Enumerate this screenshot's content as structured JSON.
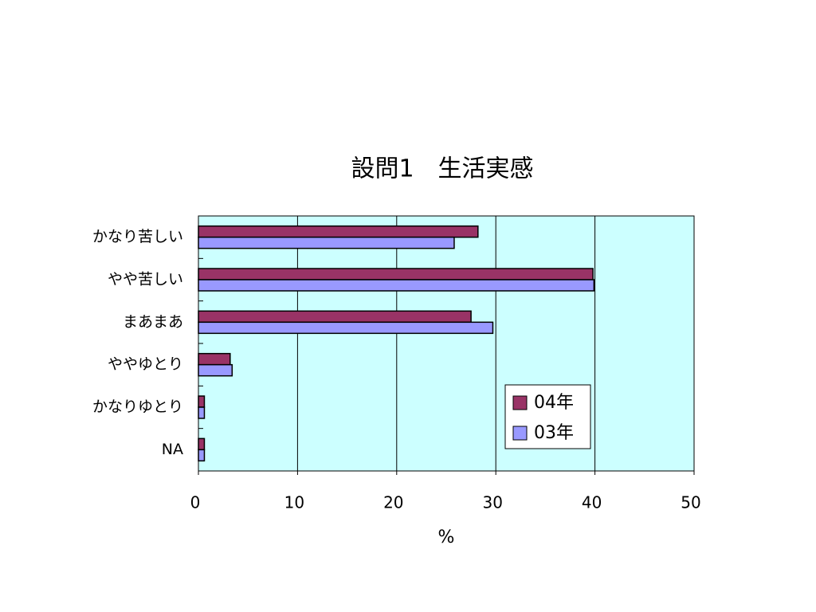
{
  "chart_data": {
    "type": "hbar",
    "title": "設問1　生活実感",
    "x_label": "%",
    "categories": [
      "かなり苦しい",
      "やや苦しい",
      "まあまあ",
      "ややゆとり",
      "かなりゆとり",
      "NA"
    ],
    "series": [
      {
        "name": "04年",
        "color": "#993366",
        "values": [
          28.2,
          39.8,
          27.5,
          3.2,
          0.6,
          0.6
        ]
      },
      {
        "name": "03年",
        "color": "#9999ff",
        "values": [
          25.8,
          39.9,
          29.7,
          3.4,
          0.6,
          0.6
        ]
      }
    ],
    "xlim": [
      0,
      50
    ],
    "xticks": [
      0,
      10,
      20,
      30,
      40,
      50
    ],
    "grid": true,
    "plot_background": "#ccffff",
    "legend": "lower right"
  }
}
